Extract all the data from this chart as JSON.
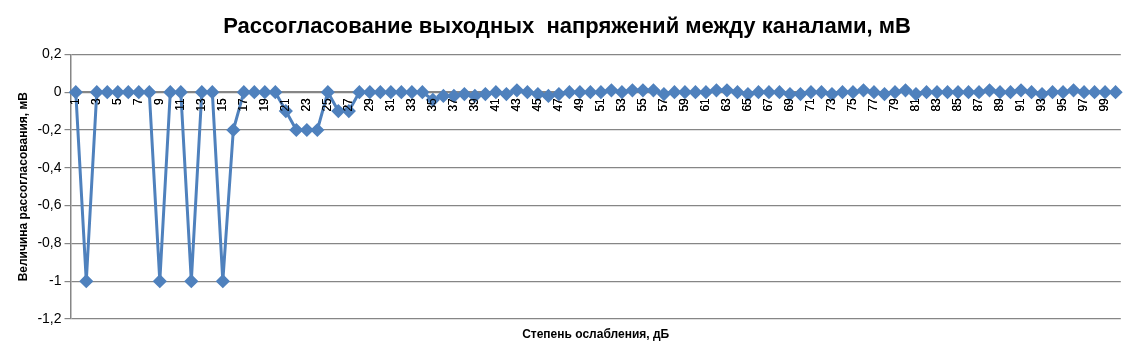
{
  "chart_data": {
    "type": "line",
    "title": "Рассогласование выходных  напряжений между каналами, мВ",
    "xlabel": "Степень ослабления, дБ",
    "ylabel": "Величина рассогласования, мВ",
    "categories": [
      "1",
      null,
      "3",
      null,
      "5",
      null,
      "7",
      null,
      "9",
      null,
      "11",
      null,
      "13",
      null,
      "15",
      null,
      "17",
      null,
      "19",
      null,
      "21",
      null,
      "23",
      null,
      "25",
      null,
      "27",
      null,
      "29",
      null,
      "31",
      null,
      "33",
      null,
      "35",
      null,
      "37",
      null,
      "39",
      null,
      "41",
      null,
      "43",
      null,
      "45",
      null,
      "47",
      null,
      "49",
      null,
      "51",
      null,
      "53",
      null,
      "55",
      null,
      "57",
      null,
      "59",
      null,
      "61",
      null,
      "63",
      null,
      "65",
      null,
      "67",
      null,
      "69",
      null,
      "71",
      null,
      "73",
      null,
      "75",
      null,
      "77",
      null,
      "79",
      null,
      "81",
      null,
      "83",
      null,
      "85",
      null,
      "87",
      null,
      "89",
      null,
      "91",
      null,
      "93",
      null,
      "95",
      null,
      "97",
      null,
      "99",
      null
    ],
    "series": [
      {
        "color": "#4f81bd",
        "values": [
          0,
          -1,
          0,
          0,
          0,
          0,
          0,
          0,
          -1,
          0,
          0,
          -1,
          0,
          0,
          -1,
          -0.2,
          0,
          0,
          0,
          0,
          -0.1,
          -0.2,
          -0.2,
          -0.2,
          0,
          -0.1,
          -0.1,
          0,
          0,
          0,
          0,
          0,
          0,
          0,
          -0.04,
          -0.02,
          -0.02,
          -0.01,
          -0.02,
          -0.01,
          0,
          -0.01,
          0.01,
          0,
          -0.01,
          -0.02,
          -0.01,
          0,
          0,
          0,
          0,
          0.01,
          0,
          0.01,
          0.01,
          0.01,
          -0.01,
          0,
          0,
          0,
          0,
          0.01,
          0.01,
          0,
          -0.01,
          0,
          0,
          0,
          -0.01,
          -0.01,
          0,
          0,
          -0.01,
          0,
          0,
          0.01,
          0,
          -0.01,
          0,
          0.01,
          -0.01,
          0,
          0,
          0,
          0,
          0,
          0,
          0.01,
          0,
          0,
          0.01,
          0,
          -0.01,
          0,
          0,
          0.01,
          0,
          0,
          0,
          0
        ]
      }
    ],
    "ylim": [
      -1.2,
      0.2
    ],
    "yticks": [
      {
        "value": 0.2,
        "label": "0,2"
      },
      0,
      {
        "value": -0.2,
        "label": "-0,2"
      },
      {
        "value": -0.4,
        "label": "-0,4"
      },
      {
        "value": -0.6,
        "label": "-0,6"
      },
      {
        "value": -0.8,
        "label": "-0,8"
      },
      {
        "value": -1,
        "label": "-1"
      },
      {
        "value": -1.2,
        "label": "-1,2"
      }
    ],
    "grid": "y",
    "legend": false,
    "marker": "diamond",
    "line_style": "solid"
  }
}
